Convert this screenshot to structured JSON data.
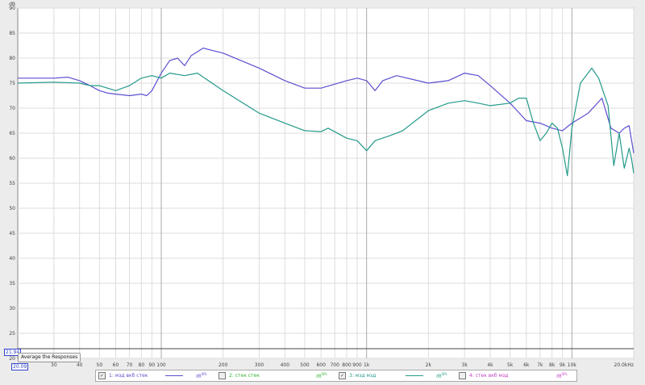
{
  "chart_data": {
    "type": "line",
    "title": "",
    "ylabel": "dB",
    "xlabel": "",
    "x_scale": "log",
    "xlim": [
      20,
      20000
    ],
    "ylim": [
      20,
      90
    ],
    "grid": true,
    "y_ticks": [
      90,
      85,
      80,
      75,
      70,
      65,
      60,
      55,
      50,
      45,
      40,
      35,
      30,
      25,
      20
    ],
    "x_ticks": [
      {
        "v": 30,
        "l": "30"
      },
      {
        "v": 40,
        "l": "40"
      },
      {
        "v": 50,
        "l": "50"
      },
      {
        "v": 60,
        "l": "60"
      },
      {
        "v": 70,
        "l": "70"
      },
      {
        "v": 80,
        "l": "80"
      },
      {
        "v": 90,
        "l": "90"
      },
      {
        "v": 100,
        "l": "100"
      },
      {
        "v": 200,
        "l": "200"
      },
      {
        "v": 300,
        "l": "300"
      },
      {
        "v": 400,
        "l": "400"
      },
      {
        "v": 500,
        "l": "500"
      },
      {
        "v": 600,
        "l": "600"
      },
      {
        "v": 700,
        "l": "700"
      },
      {
        "v": 800,
        "l": "800"
      },
      {
        "v": 900,
        "l": "900"
      },
      {
        "v": 1000,
        "l": "1k"
      },
      {
        "v": 2000,
        "l": "2k"
      },
      {
        "v": 3000,
        "l": "3k"
      },
      {
        "v": 4000,
        "l": "4k"
      },
      {
        "v": 5000,
        "l": "5k"
      },
      {
        "v": 6000,
        "l": "6k"
      },
      {
        "v": 7000,
        "l": "7k"
      },
      {
        "v": 8000,
        "l": "8k"
      },
      {
        "v": 9000,
        "l": "9k"
      },
      {
        "v": 10000,
        "l": "10k"
      },
      {
        "v": 20000,
        "l": "20.0kHz"
      }
    ],
    "series": [
      {
        "name": "1: мзд вкб стек",
        "color": "#5b4fd0",
        "visible": true,
        "x": [
          20,
          30,
          35,
          40,
          45,
          50,
          55,
          60,
          70,
          80,
          85,
          90,
          100,
          110,
          120,
          130,
          140,
          160,
          200,
          300,
          400,
          500,
          600,
          800,
          900,
          1000,
          1100,
          1200,
          1400,
          2000,
          2500,
          3000,
          3500,
          4000,
          5000,
          6000,
          7000,
          8000,
          9000,
          10000,
          12000,
          14000,
          15500,
          17000,
          18000,
          19000,
          20000
        ],
        "y": [
          76,
          76,
          76.2,
          75.5,
          74.5,
          73.5,
          73,
          72.8,
          72.5,
          72.8,
          72.5,
          73.5,
          77,
          79.5,
          80,
          78.5,
          80.5,
          82,
          81,
          78,
          75.5,
          74,
          74,
          75.5,
          76,
          75.5,
          73.5,
          75.5,
          76.5,
          75,
          75.5,
          77,
          76.5,
          74.5,
          71,
          67.5,
          67,
          66,
          65.5,
          67,
          69,
          72,
          66,
          65,
          66,
          66.5,
          61
        ]
      },
      {
        "name": "2: стек стек",
        "color": "#33b033",
        "visible": false,
        "x": [],
        "y": []
      },
      {
        "name": "3: мзд мзд",
        "color": "#249a8a",
        "visible": true,
        "x": [
          20,
          30,
          40,
          45,
          50,
          60,
          70,
          80,
          90,
          100,
          110,
          130,
          150,
          200,
          300,
          400,
          500,
          600,
          650,
          800,
          900,
          1000,
          1100,
          1300,
          1500,
          2000,
          2500,
          3000,
          3500,
          4000,
          5000,
          5500,
          6000,
          6500,
          7000,
          7500,
          8000,
          8500,
          9000,
          9500,
          10000,
          11000,
          12500,
          13500,
          15000,
          16000,
          17000,
          18000,
          19000,
          19500,
          20000
        ],
        "y": [
          75,
          75.2,
          75,
          74.5,
          74.5,
          73.5,
          74.5,
          76,
          76.5,
          76,
          77,
          76.5,
          77,
          73.5,
          69,
          67,
          65.5,
          65.3,
          66,
          64,
          63.5,
          61.5,
          63.5,
          64.5,
          65.5,
          69.5,
          71,
          71.5,
          71,
          70.5,
          71,
          72,
          72,
          67,
          63.5,
          65,
          67,
          66,
          62,
          56.5,
          66,
          75,
          78,
          76,
          70.5,
          58.5,
          65,
          58,
          62,
          60,
          57
        ]
      },
      {
        "name": "4: стек вкб мзд",
        "color": "#c040c0",
        "visible": false,
        "x": [],
        "y": []
      }
    ]
  },
  "legend": {
    "unit": "dB",
    "unit_sup": "SPL"
  },
  "controls": {
    "average_button": "Average the Responses",
    "cursor_y": "21.94",
    "cursor_x": "20.09"
  }
}
